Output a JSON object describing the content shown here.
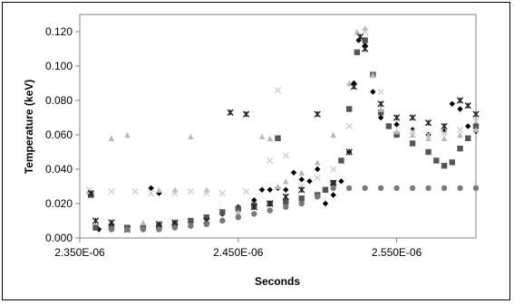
{
  "chart_data": {
    "type": "scatter",
    "title": "",
    "xlabel": "Seconds",
    "ylabel": "Temperature (keV)",
    "x_unit": "s",
    "xlim": [
      2.35e-06,
      2.6e-06
    ],
    "ylim": [
      0,
      0.13
    ],
    "x_ticks": [
      {
        "value": 2.35e-06,
        "label": "2.350E-06"
      },
      {
        "value": 2.45e-06,
        "label": "2.450E-06"
      },
      {
        "value": 2.55e-06,
        "label": "2.550E-06"
      }
    ],
    "y_ticks": [
      {
        "value": 0.0,
        "label": "0.000"
      },
      {
        "value": 0.02,
        "label": "0.020"
      },
      {
        "value": 0.04,
        "label": "0.040"
      },
      {
        "value": 0.06,
        "label": "0.060"
      },
      {
        "value": 0.08,
        "label": "0.080"
      },
      {
        "value": 0.1,
        "label": "0.100"
      },
      {
        "value": 0.12,
        "label": "0.120"
      }
    ],
    "grid": false,
    "legend": "none",
    "series": [
      {
        "marker": "diamond",
        "color": "#000000",
        "x": [
          2.356,
          2.362,
          2.37,
          2.38,
          2.39,
          2.395,
          2.4,
          2.41,
          2.42,
          2.43,
          2.44,
          2.45,
          2.46,
          2.465,
          2.47,
          2.475,
          2.48,
          2.485,
          2.49,
          2.495,
          2.5,
          2.505,
          2.51,
          2.515,
          2.52,
          2.523,
          2.526,
          2.53,
          2.535,
          2.54,
          2.545,
          2.55,
          2.56,
          2.57,
          2.58,
          2.585,
          2.59,
          2.595,
          2.6
        ],
        "y": [
          0.026,
          0.005,
          0.008,
          0.005,
          0.006,
          0.029,
          0.026,
          0.006,
          0.007,
          0.009,
          0.014,
          0.018,
          0.022,
          0.028,
          0.028,
          0.029,
          0.028,
          0.038,
          0.034,
          0.033,
          0.04,
          0.02,
          0.025,
          0.033,
          0.05,
          0.09,
          0.115,
          0.112,
          0.085,
          0.07,
          0.065,
          0.066,
          0.063,
          0.06,
          0.062,
          0.078,
          0.075,
          0.065,
          0.062
        ]
      },
      {
        "marker": "square",
        "color": "#555555",
        "x": [
          2.357,
          2.36,
          2.37,
          2.38,
          2.39,
          2.4,
          2.41,
          2.42,
          2.43,
          2.44,
          2.45,
          2.46,
          2.47,
          2.475,
          2.48,
          2.49,
          2.5,
          2.505,
          2.51,
          2.515,
          2.52,
          2.525,
          2.53,
          2.535,
          2.54,
          2.545,
          2.55,
          2.56,
          2.57,
          2.575,
          2.58,
          2.585,
          2.59,
          2.595,
          2.6
        ],
        "y": [
          0.025,
          0.006,
          0.006,
          0.006,
          0.006,
          0.007,
          0.008,
          0.01,
          0.012,
          0.015,
          0.017,
          0.019,
          0.02,
          0.058,
          0.021,
          0.023,
          0.025,
          0.028,
          0.032,
          0.045,
          0.075,
          0.108,
          0.115,
          0.095,
          0.073,
          0.065,
          0.06,
          0.055,
          0.05,
          0.045,
          0.042,
          0.044,
          0.052,
          0.058,
          0.065
        ]
      },
      {
        "marker": "triangle",
        "color": "#b8b8b8",
        "x": [
          2.356,
          2.37,
          2.38,
          2.39,
          2.4,
          2.41,
          2.42,
          2.43,
          2.44,
          2.45,
          2.46,
          2.465,
          2.47,
          2.475,
          2.48,
          2.49,
          2.5,
          2.51,
          2.52,
          2.525,
          2.53,
          2.535,
          2.54,
          2.55,
          2.56,
          2.57,
          2.58,
          2.59,
          2.6
        ],
        "y": [
          0.027,
          0.058,
          0.06,
          0.009,
          0.028,
          0.028,
          0.059,
          0.028,
          0.011,
          0.015,
          0.018,
          0.059,
          0.058,
          0.03,
          0.033,
          0.038,
          0.044,
          0.06,
          0.09,
          0.12,
          0.122,
          0.095,
          0.075,
          0.062,
          0.06,
          0.058,
          0.058,
          0.06,
          0.063
        ]
      },
      {
        "marker": "x",
        "color": "#cfcfcf",
        "x": [
          2.356,
          2.37,
          2.385,
          2.395,
          2.41,
          2.42,
          2.43,
          2.44,
          2.455,
          2.47,
          2.475,
          2.48,
          2.49,
          2.5,
          2.51,
          2.52,
          2.53,
          2.54,
          2.55,
          2.56,
          2.57,
          2.58,
          2.59,
          2.6
        ],
        "y": [
          0.028,
          0.027,
          0.027,
          0.026,
          0.026,
          0.027,
          0.026,
          0.026,
          0.027,
          0.045,
          0.086,
          0.048,
          0.03,
          0.035,
          0.04,
          0.065,
          0.12,
          0.085,
          0.07,
          0.062,
          0.06,
          0.061,
          0.063,
          0.068
        ]
      },
      {
        "marker": "star",
        "color": "#222222",
        "x": [
          2.357,
          2.36,
          2.37,
          2.38,
          2.4,
          2.41,
          2.43,
          2.445,
          2.455,
          2.46,
          2.47,
          2.48,
          2.49,
          2.5,
          2.51,
          2.52,
          2.523,
          2.527,
          2.53,
          2.54,
          2.55,
          2.56,
          2.57,
          2.58,
          2.59,
          2.595,
          2.6
        ],
        "y": [
          0.026,
          0.01,
          0.009,
          0.005,
          0.008,
          0.009,
          0.01,
          0.073,
          0.072,
          0.018,
          0.02,
          0.024,
          0.028,
          0.072,
          0.032,
          0.05,
          0.088,
          0.117,
          0.11,
          0.078,
          0.07,
          0.07,
          0.067,
          0.065,
          0.08,
          0.077,
          0.072
        ]
      },
      {
        "marker": "circle",
        "color": "#7a7a7a",
        "x": [
          2.37,
          2.38,
          2.39,
          2.4,
          2.41,
          2.42,
          2.43,
          2.44,
          2.45,
          2.46,
          2.47,
          2.48,
          2.49,
          2.5,
          2.51,
          2.52,
          2.53,
          2.54,
          2.55,
          2.56,
          2.57,
          2.58,
          2.59,
          2.6
        ],
        "y": [
          0.005,
          0.005,
          0.005,
          0.005,
          0.006,
          0.007,
          0.008,
          0.01,
          0.012,
          0.014,
          0.016,
          0.018,
          0.02,
          0.024,
          0.029,
          0.029,
          0.029,
          0.029,
          0.029,
          0.029,
          0.029,
          0.029,
          0.029,
          0.029
        ]
      }
    ]
  }
}
